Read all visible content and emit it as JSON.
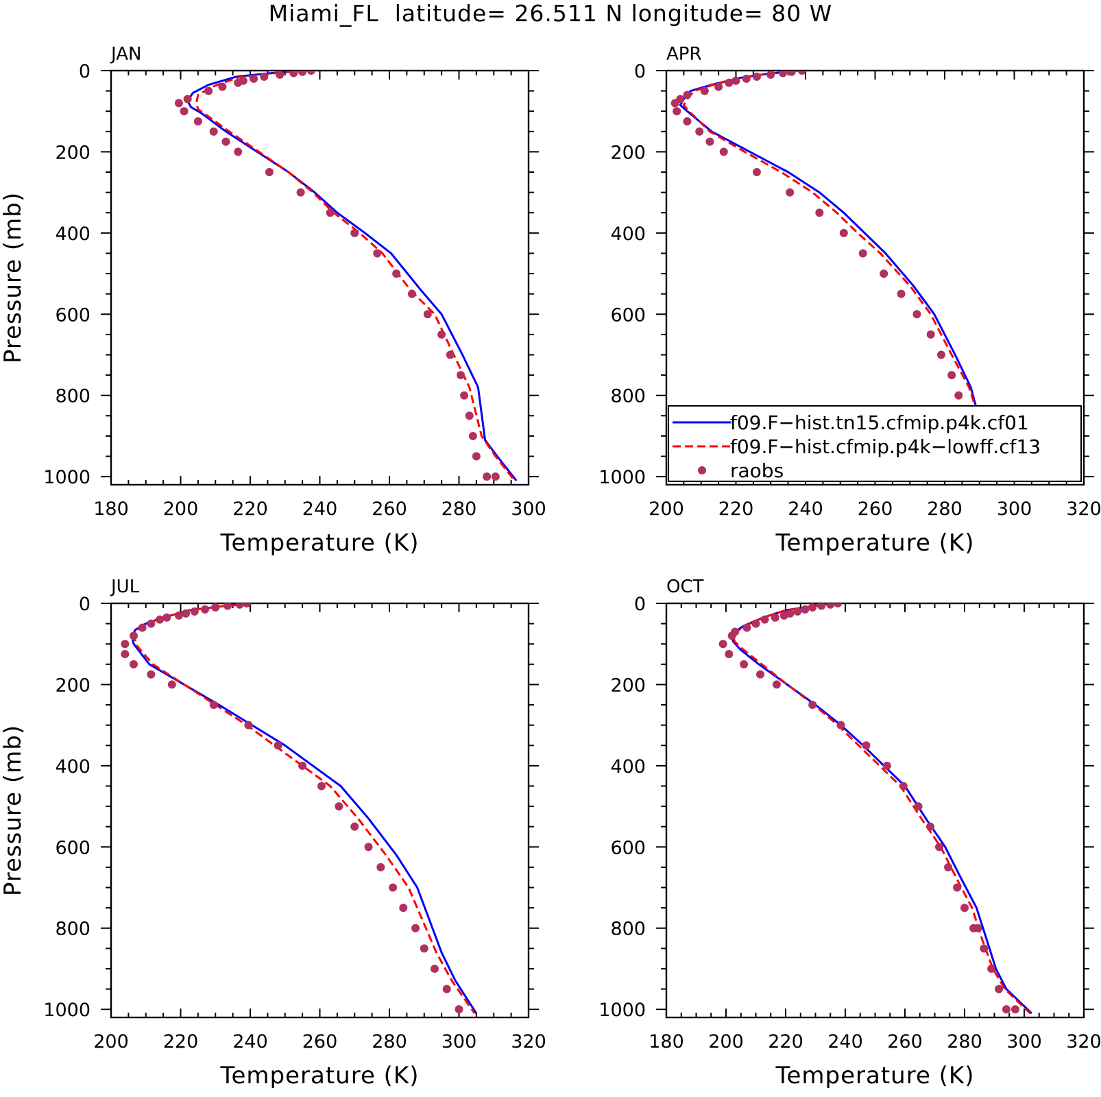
{
  "figure_title": "Miami_FL  latitude= 26.511 N longitude= 80 W",
  "colors": {
    "model_a": "#0000ff",
    "model_b": "#ff0000",
    "raobs": "#b03060"
  },
  "legend": {
    "entries": [
      {
        "label": "f09.F−hist.tn15.cfmip.p4k.cf01",
        "style": "solid",
        "color": "#0000ff"
      },
      {
        "label": "f09.F−hist.cfmip.p4k−lowff.cf13",
        "style": "dashed",
        "color": "#ff0000"
      },
      {
        "label": "raobs",
        "style": "marker",
        "color": "#b03060"
      }
    ]
  },
  "chart_data": [
    {
      "type": "line",
      "title": "JAN",
      "xlabel": "Temperature (K)",
      "ylabel": "Pressure (mb)",
      "xlim": [
        180,
        300
      ],
      "xticks": [
        180,
        200,
        220,
        240,
        260,
        280,
        300
      ],
      "ylim": [
        0,
        1020
      ],
      "yticks": [
        0,
        200,
        400,
        600,
        800,
        1000
      ],
      "y_inverted": true,
      "series": [
        {
          "name": "f09.F−hist.tn15.cfmip.p4k.cf01",
          "style": "solid",
          "x": [
            235.0,
            225.0,
            216.0,
            208.0,
            203.5,
            202.0,
            203.0,
            206.0,
            213.0,
            222.0,
            231.0,
            238.5,
            245.0,
            253.0,
            260.5,
            269.0,
            275.0,
            281.0,
            285.5,
            287.5,
            291.0,
            296.5
          ],
          "y": [
            0,
            7,
            15,
            35,
            55,
            75,
            90,
            105,
            150,
            200,
            250,
            300,
            350,
            400,
            450,
            540,
            600,
            700,
            780,
            910,
            950,
            1010
          ]
        },
        {
          "name": "f09.F−hist.cfmip.p4k−lowff.cf13",
          "style": "dashed",
          "x": [
            236.0,
            225.0,
            216.5,
            209.0,
            205.0,
            204.5,
            205.0,
            207.5,
            214.0,
            222.5,
            231.0,
            238.0,
            244.0,
            251.5,
            258.0,
            266.0,
            273.0,
            278.5,
            283.0,
            286.5,
            290.5,
            296.0
          ],
          "y": [
            0,
            8,
            17,
            40,
            60,
            80,
            95,
            110,
            150,
            200,
            250,
            300,
            350,
            400,
            450,
            540,
            600,
            700,
            780,
            900,
            950,
            1010
          ]
        },
        {
          "name": "raobs",
          "style": "marker",
          "x": [
            237.5,
            235.0,
            232.5,
            228.5,
            224.0,
            221.0,
            218.0,
            216.5,
            212.0,
            208.0,
            202.0,
            199.5,
            201.0,
            205.0,
            209.5,
            213.0,
            216.5,
            225.5,
            234.5,
            243.0,
            250.0,
            256.5,
            262.0,
            266.5,
            271.0,
            275.0,
            277.5,
            280.5,
            281.5,
            283.0,
            284.0,
            285.0,
            288.0,
            290.5
          ],
          "y": [
            0,
            3,
            6,
            10,
            15,
            20,
            25,
            30,
            40,
            50,
            70,
            80,
            100,
            125,
            150,
            175,
            200,
            250,
            300,
            350,
            400,
            450,
            500,
            550,
            600,
            650,
            700,
            750,
            800,
            850,
            900,
            950,
            1000,
            1000
          ]
        }
      ]
    },
    {
      "type": "line",
      "title": "APR",
      "xlabel": "Temperature (K)",
      "ylabel": "",
      "xlim": [
        200,
        320
      ],
      "xticks": [
        200,
        220,
        240,
        260,
        280,
        300,
        320
      ],
      "ylim": [
        0,
        1020
      ],
      "yticks": [
        0,
        200,
        400,
        600,
        800,
        1000
      ],
      "y_inverted": true,
      "series": [
        {
          "name": "f09.F−hist.tn15.cfmip.p4k.cf01",
          "style": "solid",
          "x": [
            238.0,
            229.0,
            221.0,
            213.0,
            207.0,
            205.0,
            204.0,
            206.0,
            213.0,
            224.0,
            235.0,
            244.0,
            251.0,
            257.0,
            263.0,
            271.0,
            277.0,
            283.0,
            287.5,
            290.0,
            292.5,
            300.0
          ],
          "y": [
            0,
            8,
            18,
            35,
            50,
            70,
            85,
            100,
            150,
            200,
            250,
            300,
            350,
            400,
            450,
            530,
            600,
            700,
            780,
            860,
            920,
            1010
          ]
        },
        {
          "name": "f09.F−hist.cfmip.p4k−lowff.cf13",
          "style": "dashed",
          "x": [
            238.5,
            229.0,
            221.0,
            213.5,
            208.0,
            206.0,
            205.0,
            206.5,
            212.5,
            222.5,
            233.0,
            242.0,
            249.0,
            255.0,
            261.5,
            270.0,
            276.0,
            282.0,
            287.0,
            290.0,
            293.0,
            299.5
          ],
          "y": [
            0,
            8,
            18,
            35,
            50,
            70,
            85,
            100,
            150,
            200,
            250,
            300,
            350,
            400,
            450,
            530,
            600,
            700,
            780,
            860,
            920,
            1010
          ]
        },
        {
          "name": "raobs",
          "style": "marker",
          "x": [
            239.0,
            236.0,
            233.5,
            230.0,
            226.0,
            223.0,
            220.0,
            218.0,
            215.0,
            211.0,
            206.0,
            204.0,
            202.5,
            203.0,
            206.0,
            209.5,
            212.5,
            216.5,
            226.0,
            235.5,
            244.0,
            251.0,
            256.5,
            262.5,
            267.5,
            272.0,
            276.0,
            279.0,
            282.0,
            284.0,
            286.5,
            288.5,
            291.5,
            295.0
          ],
          "y": [
            0,
            3,
            6,
            10,
            15,
            20,
            25,
            30,
            40,
            50,
            60,
            70,
            80,
            100,
            125,
            150,
            175,
            200,
            250,
            300,
            350,
            400,
            450,
            500,
            550,
            600,
            650,
            700,
            750,
            800,
            850,
            900,
            950,
            1000
          ]
        }
      ]
    },
    {
      "type": "line",
      "title": "JUL",
      "xlabel": "Temperature (K)",
      "ylabel": "Pressure (mb)",
      "xlim": [
        200,
        320
      ],
      "xticks": [
        200,
        220,
        240,
        260,
        280,
        300,
        320
      ],
      "ylim": [
        0,
        1020
      ],
      "yticks": [
        0,
        200,
        400,
        600,
        800,
        1000
      ],
      "y_inverted": true,
      "series": [
        {
          "name": "f09.F−hist.tn15.cfmip.p4k.cf01",
          "style": "solid",
          "x": [
            240.5,
            231.0,
            222.5,
            215.0,
            210.0,
            207.0,
            206.0,
            206.5,
            211.0,
            221.0,
            231.0,
            240.5,
            250.0,
            258.0,
            266.0,
            274.0,
            282.0,
            288.0,
            291.5,
            295.0,
            299.0,
            305.0
          ],
          "y": [
            0,
            8,
            17,
            35,
            50,
            65,
            80,
            100,
            150,
            200,
            250,
            300,
            350,
            400,
            450,
            530,
            620,
            700,
            780,
            860,
            930,
            1010
          ]
        },
        {
          "name": "f09.F−hist.cfmip.p4k−lowff.cf13",
          "style": "dashed",
          "x": [
            240.5,
            231.0,
            222.5,
            215.0,
            210.0,
            207.5,
            206.5,
            207.5,
            212.0,
            221.0,
            230.0,
            239.0,
            247.0,
            255.0,
            263.0,
            271.0,
            279.0,
            285.5,
            289.5,
            293.5,
            298.0,
            304.5
          ],
          "y": [
            0,
            8,
            17,
            35,
            50,
            65,
            80,
            105,
            150,
            200,
            250,
            300,
            350,
            400,
            450,
            530,
            620,
            700,
            780,
            860,
            930,
            1010
          ]
        },
        {
          "name": "raobs",
          "style": "marker",
          "x": [
            239.0,
            237.0,
            233.5,
            230.0,
            227.0,
            224.0,
            221.5,
            219.5,
            216.0,
            214.0,
            211.5,
            209.0,
            206.5,
            204.0,
            204.0,
            206.5,
            211.5,
            217.5,
            229.5,
            239.5,
            248.0,
            255.0,
            260.5,
            265.5,
            270.0,
            274.0,
            277.5,
            281.0,
            284.0,
            287.5,
            290.0,
            293.0,
            296.5,
            300.0
          ],
          "y": [
            0,
            3,
            6,
            10,
            15,
            20,
            25,
            30,
            35,
            40,
            50,
            60,
            80,
            100,
            125,
            150,
            175,
            200,
            250,
            300,
            350,
            400,
            450,
            500,
            550,
            600,
            650,
            700,
            750,
            800,
            850,
            900,
            950,
            1000
          ]
        }
      ]
    },
    {
      "type": "line",
      "title": "OCT",
      "xlabel": "Temperature (K)",
      "ylabel": "",
      "xlim": [
        180,
        320
      ],
      "xticks": [
        180,
        200,
        220,
        240,
        260,
        280,
        300,
        320
      ],
      "ylim": [
        0,
        1020
      ],
      "yticks": [
        0,
        200,
        400,
        600,
        800,
        1000
      ],
      "y_inverted": true,
      "series": [
        {
          "name": "f09.F−hist.tn15.cfmip.p4k.cf01",
          "style": "solid",
          "x": [
            236.0,
            228.0,
            220.0,
            212.5,
            206.0,
            203.0,
            202.0,
            202.5,
            205.0,
            211.0,
            220.5,
            230.0,
            238.5,
            246.0,
            253.0,
            260.0,
            267.0,
            273.5,
            279.0,
            284.0,
            287.5,
            290.5,
            294.0,
            302.5
          ],
          "y": [
            0,
            8,
            17,
            35,
            55,
            70,
            85,
            95,
            115,
            150,
            200,
            250,
            300,
            350,
            400,
            450,
            530,
            600,
            680,
            750,
            830,
            900,
            950,
            1010
          ]
        },
        {
          "name": "f09.F−hist.cfmip.p4k−lowff.cf13",
          "style": "dashed",
          "x": [
            236.5,
            228.0,
            220.0,
            212.5,
            206.5,
            203.5,
            202.5,
            203.0,
            206.0,
            212.0,
            220.5,
            229.5,
            237.5,
            244.5,
            251.5,
            258.5,
            265.5,
            272.0,
            277.5,
            282.5,
            286.0,
            289.5,
            293.5,
            302.0
          ],
          "y": [
            0,
            8,
            17,
            35,
            55,
            70,
            85,
            95,
            115,
            150,
            200,
            250,
            300,
            350,
            400,
            450,
            530,
            600,
            680,
            750,
            830,
            900,
            950,
            1010
          ]
        },
        {
          "name": "raobs",
          "style": "marker",
          "x": [
            237.5,
            235.0,
            232.0,
            229.0,
            226.5,
            224.0,
            221.5,
            219.5,
            216.5,
            213.0,
            210.0,
            207.0,
            203.0,
            202.0,
            199.0,
            201.0,
            206.0,
            211.5,
            217.0,
            229.0,
            238.5,
            247.0,
            254.0,
            259.5,
            264.5,
            268.5,
            271.5,
            274.5,
            277.5,
            280.0,
            283.0,
            284.5,
            286.5,
            289.0,
            291.5,
            294.0,
            297.0
          ],
          "y": [
            0,
            3,
            6,
            10,
            15,
            20,
            25,
            30,
            35,
            40,
            50,
            60,
            70,
            80,
            100,
            125,
            150,
            175,
            200,
            250,
            300,
            350,
            400,
            450,
            500,
            550,
            600,
            650,
            700,
            750,
            800,
            800,
            850,
            900,
            950,
            1000,
            1000
          ]
        }
      ]
    }
  ]
}
